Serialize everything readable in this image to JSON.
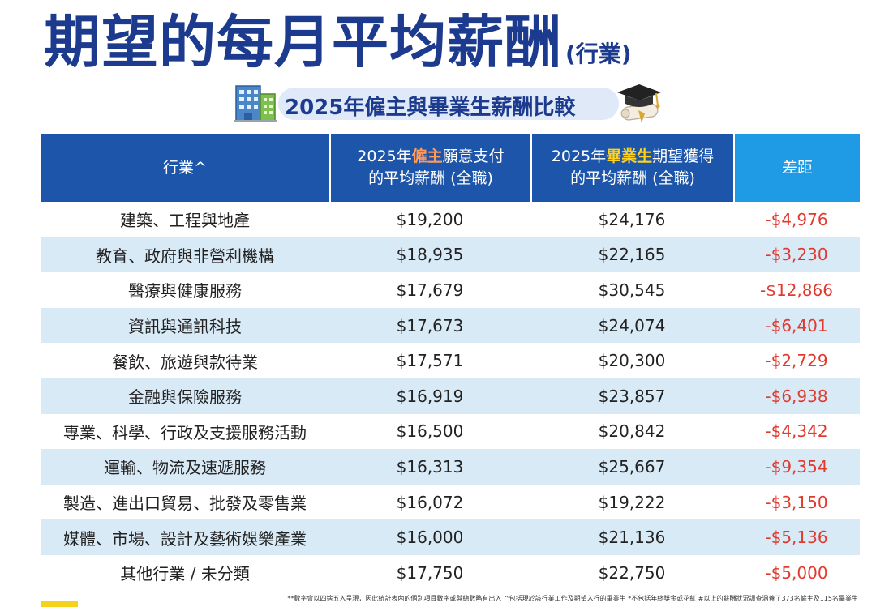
{
  "header": {
    "title_main": "期望的每月平均薪酬",
    "title_suffix": "(行業)",
    "subtitle": "2025年僱主與畢業生薪酬比較"
  },
  "chart_data": {
    "type": "table",
    "columns": {
      "industry": "行業^",
      "employer": {
        "prefix": "2025年",
        "highlight": "僱主",
        "suffix": "願意支付",
        "line2": "的平均薪酬 (全職)"
      },
      "graduate": {
        "prefix": "2025年",
        "highlight": "畢業生",
        "suffix": "期望獲得",
        "line2": "的平均薪酬 (全職)"
      },
      "gap": "差距"
    },
    "rows": [
      {
        "industry": "建築、工程與地產",
        "employer": "$19,200",
        "graduate": "$24,176",
        "gap": "-$4,976"
      },
      {
        "industry": "教育、政府與非營利機構",
        "employer": "$18,935",
        "graduate": "$22,165",
        "gap": "-$3,230"
      },
      {
        "industry": "醫療與健康服務",
        "employer": "$17,679",
        "graduate": "$30,545",
        "gap": "-$12,866"
      },
      {
        "industry": "資訊與通訊科技",
        "employer": "$17,673",
        "graduate": "$24,074",
        "gap": "-$6,401"
      },
      {
        "industry": "餐飲、旅遊與款待業",
        "employer": "$17,571",
        "graduate": "$20,300",
        "gap": "-$2,729"
      },
      {
        "industry": "金融與保險服務",
        "employer": "$16,919",
        "graduate": "$23,857",
        "gap": "-$6,938"
      },
      {
        "industry": "專業、科學、行政及支援服務活動",
        "employer": "$16,500",
        "graduate": "$20,842",
        "gap": "-$4,342"
      },
      {
        "industry": "運輸、物流及速遞服務",
        "employer": "$16,313",
        "graduate": "$25,667",
        "gap": "-$9,354"
      },
      {
        "industry": "製造、進出口貿易、批發及零售業",
        "employer": "$16,072",
        "graduate": "$19,222",
        "gap": "-$3,150"
      },
      {
        "industry": "媒體、市場、設計及藝術娛樂產業",
        "employer": "$16,000",
        "graduate": "$21,136",
        "gap": "-$5,136"
      },
      {
        "industry": "其他行業 / 未分類",
        "employer": "$17,750",
        "graduate": "$22,750",
        "gap": "-$5,000"
      }
    ]
  },
  "footnote": "**數字會以四捨五入呈現，因此統計表內的個別項目數字或與總數略有出入   ^包括現於該行業工作及期望入行的畢業生   *不包括年終獎金或花紅   #以上的薪酬狀況調查涵蓋了373名僱主及115名畢業生",
  "icons": {
    "building": "building-icon",
    "graduation": "graduation-cap-icon"
  },
  "colors": {
    "title": "#1c3a8e",
    "header_bg": "#1c55a9",
    "gap_header_bg": "#1f9be6",
    "row_alt": "#d9eaf7",
    "gap_text": "#e03a2f",
    "employer_highlight": "#ff9a5c",
    "graduate_highlight": "#ffd21e"
  }
}
